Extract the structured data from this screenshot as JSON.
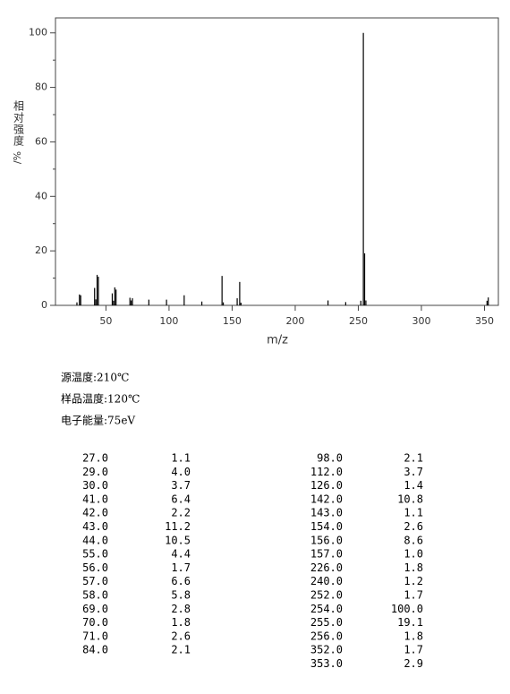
{
  "chart_data": {
    "type": "stem",
    "x_label": "m/z",
    "y_label": "相对强度",
    "y_unit": "/%",
    "x": [
      27,
      29,
      30,
      41,
      42,
      43,
      44,
      55,
      56,
      57,
      58,
      69,
      70,
      71,
      84,
      98,
      112,
      126,
      142,
      143,
      154,
      156,
      157,
      226,
      240,
      252,
      254,
      255,
      256,
      352,
      353
    ],
    "values": [
      1.1,
      4.0,
      3.7,
      6.4,
      2.2,
      11.2,
      10.5,
      4.4,
      1.7,
      6.6,
      5.8,
      2.8,
      1.8,
      2.6,
      2.1,
      2.1,
      3.7,
      1.4,
      10.8,
      1.1,
      2.6,
      8.6,
      1.0,
      1.8,
      1.2,
      1.7,
      100.0,
      19.1,
      1.8,
      1.7,
      2.9
    ],
    "color": "#000000",
    "xlim": [
      10,
      361
    ],
    "xticks": [
      50,
      100,
      150,
      200,
      250,
      300,
      350
    ],
    "ylim": [
      0,
      105.5
    ],
    "yticks": [
      0,
      20,
      40,
      60,
      80,
      100
    ],
    "yminorticks": [
      10,
      30,
      50,
      70,
      90
    ]
  },
  "conditions": [
    "源温度:210℃",
    "样品温度:120℃",
    "电子能量:75eV"
  ],
  "peak_table": {
    "left": [
      [
        "27.0",
        "1.1"
      ],
      [
        "29.0",
        "4.0"
      ],
      [
        "30.0",
        "3.7"
      ],
      [
        "41.0",
        "6.4"
      ],
      [
        "42.0",
        "2.2"
      ],
      [
        "43.0",
        "11.2"
      ],
      [
        "44.0",
        "10.5"
      ],
      [
        "55.0",
        "4.4"
      ],
      [
        "56.0",
        "1.7"
      ],
      [
        "57.0",
        "6.6"
      ],
      [
        "58.0",
        "5.8"
      ],
      [
        "69.0",
        "2.8"
      ],
      [
        "70.0",
        "1.8"
      ],
      [
        "71.0",
        "2.6"
      ],
      [
        "84.0",
        "2.1"
      ]
    ],
    "right": [
      [
        "98.0",
        "2.1"
      ],
      [
        "112.0",
        "3.7"
      ],
      [
        "126.0",
        "1.4"
      ],
      [
        "142.0",
        "10.8"
      ],
      [
        "143.0",
        "1.1"
      ],
      [
        "154.0",
        "2.6"
      ],
      [
        "156.0",
        "8.6"
      ],
      [
        "157.0",
        "1.0"
      ],
      [
        "226.0",
        "1.8"
      ],
      [
        "240.0",
        "1.2"
      ],
      [
        "252.0",
        "1.7"
      ],
      [
        "254.0",
        "100.0"
      ],
      [
        "255.0",
        "19.1"
      ],
      [
        "256.0",
        "1.8"
      ],
      [
        "352.0",
        "1.7"
      ],
      [
        "353.0",
        "2.9"
      ]
    ]
  }
}
